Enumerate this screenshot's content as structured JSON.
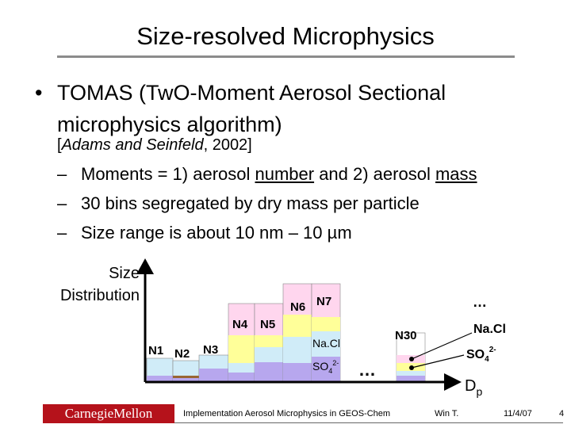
{
  "slide": {
    "title": "Size-resolved Microphysics",
    "bullet_symbol": "•",
    "bullet_text": "TOMAS (TwO-Moment Aerosol Sectional microphysics algorithm)",
    "reference": {
      "open": "[",
      "authors": "Adams and Seinfeld",
      "year_close": ", 2002]"
    },
    "sub_dash": "–",
    "sub1": {
      "pre": "Moments = 1) aerosol ",
      "u1": "number",
      "mid": " and 2) aerosol ",
      "u2": "mass"
    },
    "sub2": "30 bins segregated by dry mass per particle",
    "sub3": "Size range is about 10 nm – 10 µm"
  },
  "diagram": {
    "y_axis_label_line1": "Size",
    "y_axis_label_line2": "Distribution",
    "x_axis_label": "D",
    "x_axis_label_sub": "p",
    "bin_labels": [
      "N1",
      "N2",
      "N3",
      "N4",
      "N5",
      "N6",
      "N7",
      "N30"
    ],
    "ellipsis": "…",
    "component_nacl": "Na.Cl",
    "component_so4": "SO",
    "so4_sub": "4",
    "so4_sup": "2-",
    "colors": {
      "pink": "#ffd6ee",
      "yellow": "#ffff99",
      "lightblue": "#d0ecf8",
      "violet": "#b7a7ee",
      "brown": "#996633",
      "axis": "#000000"
    }
  },
  "footer": {
    "logo": "CarnegieMellon",
    "course": "Implementation Aerosol Microphysics in GEOS-Chem",
    "author": "Win T.",
    "date": "11/4/07",
    "page": "4"
  }
}
